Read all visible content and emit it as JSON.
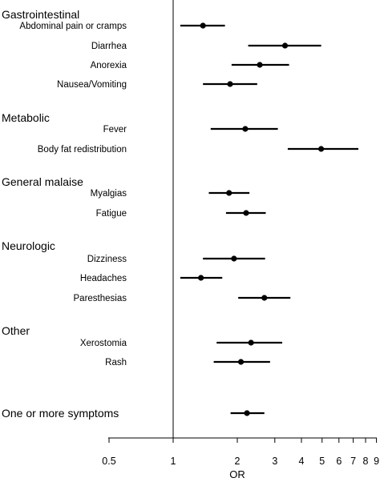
{
  "chart_data": {
    "type": "forest",
    "xlabel": "OR",
    "xscale": "log",
    "xlim": [
      0.5,
      9.4
    ],
    "reference_line": 1,
    "xticks": [
      {
        "value": 0.5,
        "label": "0.5"
      },
      {
        "value": 1,
        "label": "1"
      },
      {
        "value": 2,
        "label": "2"
      },
      {
        "value": 3,
        "label": "3"
      },
      {
        "value": 4,
        "label": "4"
      },
      {
        "value": 5,
        "label": "5"
      },
      {
        "value": 6,
        "label": "6"
      },
      {
        "value": 7,
        "label": "7"
      },
      {
        "value": 8,
        "label": "8"
      },
      {
        "value": 9,
        "label": "9"
      }
    ],
    "groups": [
      {
        "name": "Gastrointestinal",
        "rows": [
          {
            "label": "Abdominal pain or cramps",
            "or": 1.38,
            "lo": 1.08,
            "hi": 1.75
          },
          {
            "label": "Diarrhea",
            "or": 3.35,
            "lo": 2.25,
            "hi": 4.95
          },
          {
            "label": "Anorexia",
            "or": 2.55,
            "lo": 1.88,
            "hi": 3.5
          },
          {
            "label": "Nausea/Vomiting",
            "or": 1.85,
            "lo": 1.38,
            "hi": 2.48
          }
        ]
      },
      {
        "name": "Metabolic",
        "rows": [
          {
            "label": "Fever",
            "or": 2.18,
            "lo": 1.5,
            "hi": 3.1
          },
          {
            "label": "Body fat redistribution",
            "or": 4.95,
            "lo": 3.45,
            "hi": 7.4
          }
        ]
      },
      {
        "name": "General malaise",
        "rows": [
          {
            "label": "Myalgias",
            "or": 1.83,
            "lo": 1.47,
            "hi": 2.28
          },
          {
            "label": "Fatigue",
            "or": 2.2,
            "lo": 1.77,
            "hi": 2.72
          }
        ]
      },
      {
        "name": "Neurologic",
        "rows": [
          {
            "label": "Dizziness",
            "or": 1.93,
            "lo": 1.38,
            "hi": 2.7
          },
          {
            "label": "Headaches",
            "or": 1.35,
            "lo": 1.08,
            "hi": 1.7
          },
          {
            "label": "Paresthesias",
            "or": 2.68,
            "lo": 2.02,
            "hi": 3.55
          }
        ]
      },
      {
        "name": "Other",
        "rows": [
          {
            "label": "Xerostomia",
            "or": 2.32,
            "lo": 1.6,
            "hi": 3.25
          },
          {
            "label": "Rash",
            "or": 2.08,
            "lo": 1.55,
            "hi": 2.85
          }
        ]
      },
      {
        "name": "One or more symptoms",
        "rows": [
          {
            "label": "",
            "or": 2.22,
            "lo": 1.86,
            "hi": 2.68
          }
        ]
      }
    ]
  }
}
